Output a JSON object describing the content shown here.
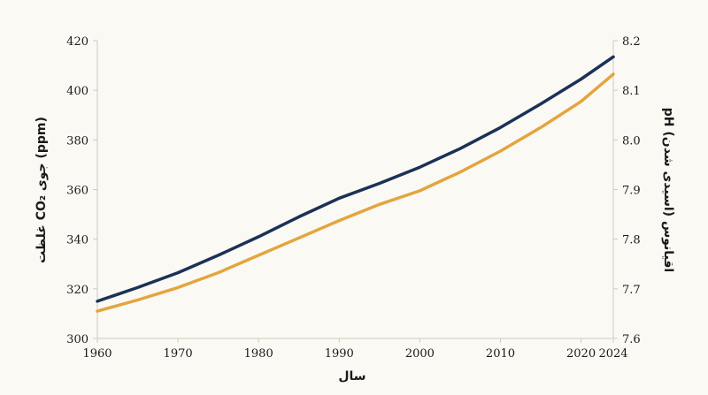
{
  "chart_data": {
    "type": "line",
    "title": "",
    "xlabel": "سال",
    "ylabel_left": "غلظت CO₂ جوی (ppm)",
    "ylabel_right": "pH اقیانوس (اسیدی شدن)",
    "x_ticks": [
      1960,
      1970,
      1980,
      1990,
      2000,
      2010,
      2020,
      2024
    ],
    "xlim": [
      1960,
      2024
    ],
    "ylim_left": [
      300,
      420
    ],
    "ylim_right": [
      7.6,
      8.2
    ],
    "y_ticks_left": [
      300,
      320,
      340,
      360,
      380,
      400,
      420
    ],
    "y_ticks_right": [
      "7.6",
      "7.7",
      "7.8",
      "7.9",
      "8.0",
      "8.1",
      "8.2"
    ],
    "grid": false,
    "series": [
      {
        "axis": "left",
        "color": "#1b3157",
        "x": [
          1960,
          1965,
          1970,
          1975,
          1980,
          1985,
          1990,
          1995,
          2000,
          2005,
          2010,
          2015,
          2020,
          2024
        ],
        "values": [
          315,
          320.5,
          326.5,
          333.5,
          341,
          349,
          356.5,
          362.5,
          369,
          376.5,
          385,
          394.5,
          404.5,
          413.5
        ]
      },
      {
        "axis": "left",
        "color": "#e3a53f",
        "x": [
          1960,
          1965,
          1970,
          1975,
          1980,
          1985,
          1990,
          1995,
          2000,
          2005,
          2010,
          2015,
          2020,
          2024
        ],
        "values": [
          311,
          315.5,
          320.5,
          326.5,
          333.5,
          340.5,
          347.5,
          354,
          359.5,
          367,
          375.5,
          385,
          395.5,
          406.5
        ]
      }
    ]
  }
}
